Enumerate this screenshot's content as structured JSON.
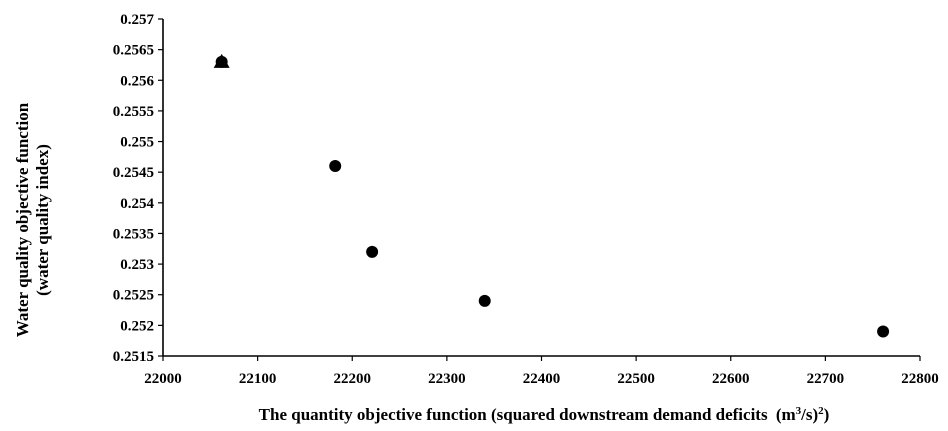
{
  "chart_data": {
    "type": "scatter",
    "title": "",
    "xlabel": "The quantity objective function (squared downstream demand deficits",
    "xlabel_unit": "(m3/s)2",
    "ylabel_line1": "Water quality objective function",
    "ylabel_line2": "(water quality index)",
    "xlim": [
      22000,
      22800
    ],
    "ylim": [
      0.2515,
      0.257
    ],
    "x_ticks": [
      "22000",
      "22100",
      "22200",
      "22300",
      "22400",
      "22500",
      "22600",
      "22700",
      "22800"
    ],
    "y_ticks": [
      "0.2515",
      "0.252",
      "0.2525",
      "0.253",
      "0.2535",
      "0.254",
      "0.2545",
      "0.255",
      "0.2555",
      "0.256",
      "0.2565",
      "0.257"
    ],
    "grid": false,
    "legend": "none",
    "series": [
      {
        "marker": "circle",
        "points": [
          {
            "x": 22062,
            "y": 0.2563
          },
          {
            "x": 22182,
            "y": 0.2546
          },
          {
            "x": 22221,
            "y": 0.2532
          },
          {
            "x": 22340,
            "y": 0.2524
          },
          {
            "x": 22761,
            "y": 0.2519
          }
        ]
      },
      {
        "marker": "triangle",
        "points": [
          {
            "x": 22062,
            "y": 0.2563
          }
        ]
      }
    ]
  }
}
